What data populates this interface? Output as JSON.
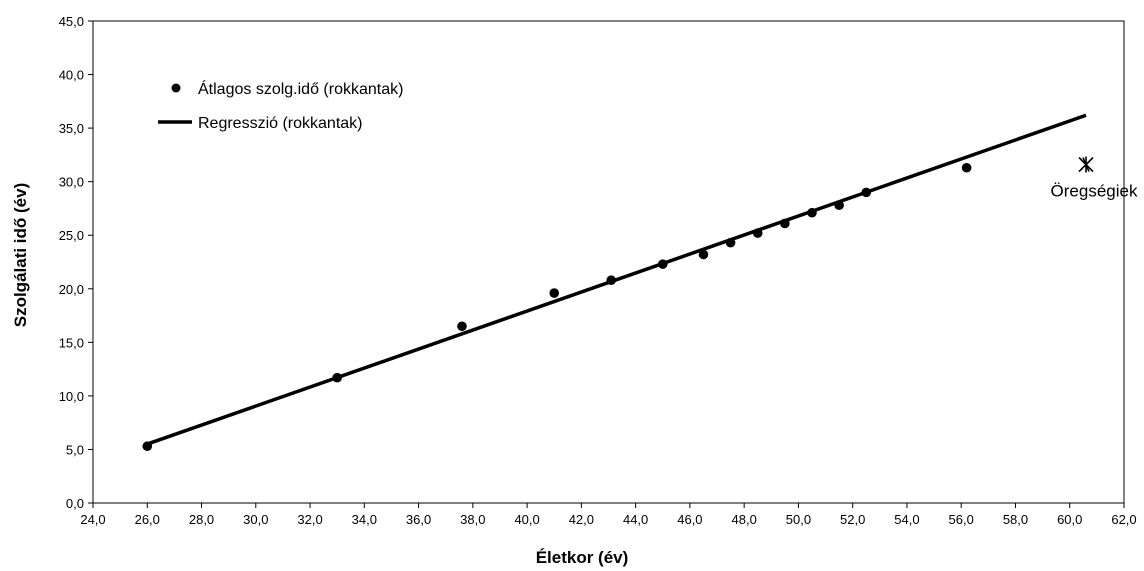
{
  "chart_data": {
    "type": "scatter",
    "title": "",
    "xlabel": "Életkor (év)",
    "ylabel": "Szolgálati idő (év)",
    "xlim": [
      24,
      62
    ],
    "ylim": [
      0,
      45
    ],
    "x_ticks": [
      "24,0",
      "26,0",
      "28,0",
      "30,0",
      "32,0",
      "34,0",
      "36,0",
      "38,0",
      "40,0",
      "42,0",
      "44,0",
      "46,0",
      "48,0",
      "50,0",
      "52,0",
      "54,0",
      "56,0",
      "58,0",
      "60,0",
      "62,0"
    ],
    "y_ticks": [
      "0,0",
      "5,0",
      "10,0",
      "15,0",
      "20,0",
      "25,0",
      "30,0",
      "35,0",
      "40,0",
      "45,0"
    ],
    "grid": false,
    "legend_position": "top-left",
    "series": [
      {
        "name": "Átlagos szolg.idő (rokkantak)",
        "kind": "scatter",
        "marker": "circle",
        "color": "#000000",
        "points": [
          [
            26.0,
            5.3
          ],
          [
            33.0,
            11.7
          ],
          [
            37.6,
            16.5
          ],
          [
            41.0,
            19.6
          ],
          [
            43.1,
            20.8
          ],
          [
            45.0,
            22.3
          ],
          [
            46.5,
            23.2
          ],
          [
            47.5,
            24.3
          ],
          [
            48.5,
            25.2
          ],
          [
            49.5,
            26.1
          ],
          [
            50.5,
            27.1
          ],
          [
            51.5,
            27.8
          ],
          [
            52.5,
            29.0
          ],
          [
            56.2,
            31.3
          ]
        ]
      },
      {
        "name": "Regresszió (rokkantak)",
        "kind": "line",
        "color": "#000000",
        "points": [
          [
            26.0,
            5.5
          ],
          [
            60.6,
            36.2
          ]
        ]
      }
    ],
    "annotation": {
      "label": "Öregségiek",
      "marker": "asterisk",
      "point": [
        60.6,
        31.6
      ]
    }
  }
}
